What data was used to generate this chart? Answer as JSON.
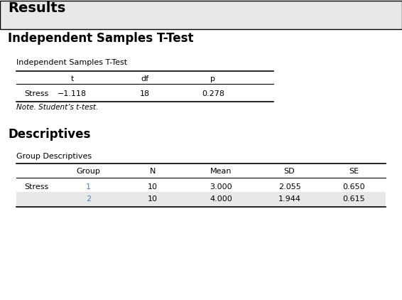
{
  "results_title": "Results",
  "section1_title": "Independent Samples T-Test",
  "table1_title": "Independent Samples T-Test",
  "table1_headers": [
    "",
    "t",
    "df",
    "p"
  ],
  "table1_row": [
    "Stress",
    "−1.118",
    "18",
    "0.278"
  ],
  "table1_note": "Note. Student’s t-test.",
  "section2_title": "Descriptives",
  "table2_title": "Group Descriptives",
  "table2_headers": [
    "",
    "Group",
    "N",
    "Mean",
    "SD",
    "SE"
  ],
  "table2_rows": [
    [
      "Stress",
      "1",
      "10",
      "3.000",
      "2.055",
      "0.650"
    ],
    [
      "",
      "2",
      "10",
      "4.000",
      "1.944",
      "0.615"
    ]
  ],
  "bg_results_bar": "#e8e8e8",
  "bg_white": "#ffffff",
  "bg_row_shade": "#e8e8e8",
  "text_color_main": "#000000",
  "text_color_group": "#4f81bd",
  "font_size_results": 14,
  "font_size_section": 12,
  "font_size_table_title": 8,
  "font_size_table": 8,
  "font_size_note": 7.5
}
